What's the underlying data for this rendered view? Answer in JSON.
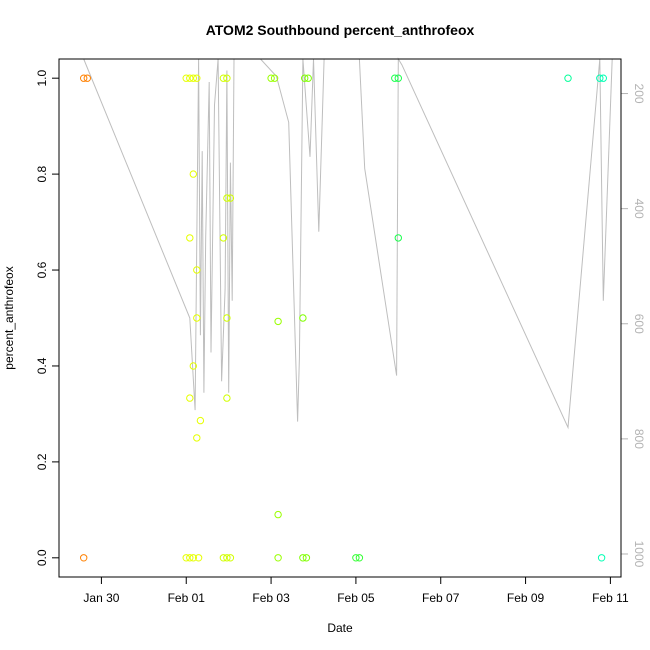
{
  "chart_data": {
    "type": "scatter",
    "title": "ATOM2 Southbound percent_anthrofeox",
    "xlabel": "Date",
    "ylabel": "percent_anthrofeox",
    "x_unit": "date",
    "xlim": [
      "2017-01-29T00:00",
      "2017-02-11T06:00"
    ],
    "ylim": [
      -0.04,
      1.04
    ],
    "x_ticks": [
      {
        "date": "2017-01-30T00:00",
        "label": "Jan 30"
      },
      {
        "date": "2017-02-01T00:00",
        "label": "Feb 01"
      },
      {
        "date": "2017-02-03T00:00",
        "label": "Feb 03"
      },
      {
        "date": "2017-02-05T00:00",
        "label": "Feb 05"
      },
      {
        "date": "2017-02-07T00:00",
        "label": "Feb 07"
      },
      {
        "date": "2017-02-09T00:00",
        "label": "Feb 09"
      },
      {
        "date": "2017-02-11T00:00",
        "label": "Feb 11"
      }
    ],
    "y_ticks": [
      0.0,
      0.2,
      0.4,
      0.6,
      0.8,
      1.0
    ],
    "y_tick_labels": [
      "0.0",
      "0.2",
      "0.4",
      "0.6",
      "0.8",
      "1.0"
    ],
    "secondary_axis": {
      "side": "right",
      "reversed": true,
      "lim": [
        140,
        1040
      ],
      "ticks": [
        200,
        400,
        600,
        800,
        1000
      ],
      "tick_labels": [
        "200",
        "400",
        "600",
        "800",
        "1000"
      ],
      "color": "#b3b3b3"
    },
    "line_series": {
      "axis": "secondary",
      "color": "#bebebe",
      "points": [
        [
          "2017-01-29T14:00",
          140
        ],
        [
          "2017-02-01T02:00",
          590
        ],
        [
          "2017-02-01T05:00",
          750
        ],
        [
          "2017-02-01T07:00",
          140
        ],
        [
          "2017-02-01T08:00",
          620
        ],
        [
          "2017-02-01T09:00",
          300
        ],
        [
          "2017-02-01T10:00",
          720
        ],
        [
          "2017-02-01T11:00",
          450
        ],
        [
          "2017-02-01T13:00",
          180
        ],
        [
          "2017-02-01T14:00",
          650
        ],
        [
          "2017-02-01T16:00",
          220
        ],
        [
          "2017-02-01T18:00",
          140
        ],
        [
          "2017-02-01T20:00",
          700
        ],
        [
          "2017-02-01T22:00",
          540
        ],
        [
          "2017-02-01T23:00",
          160
        ],
        [
          "2017-02-02T00:00",
          720
        ],
        [
          "2017-02-02T01:00",
          320
        ],
        [
          "2017-02-02T02:00",
          560
        ],
        [
          "2017-02-02T03:00",
          140
        ],
        [
          "2017-02-02T18:00",
          140
        ],
        [
          "2017-02-03T03:00",
          170
        ],
        [
          "2017-02-03T10:00",
          250
        ],
        [
          "2017-02-03T15:00",
          770
        ],
        [
          "2017-02-03T16:00",
          660
        ],
        [
          "2017-02-03T18:00",
          140
        ],
        [
          "2017-02-03T22:00",
          310
        ],
        [
          "2017-02-04T00:00",
          140
        ],
        [
          "2017-02-04T03:00",
          440
        ],
        [
          "2017-02-04T06:00",
          140
        ],
        [
          "2017-02-05T02:00",
          140
        ],
        [
          "2017-02-05T05:00",
          330
        ],
        [
          "2017-02-05T23:00",
          690
        ],
        [
          "2017-02-06T00:00",
          140
        ],
        [
          "2017-02-06T02:00",
          150
        ],
        [
          "2017-02-10T00:00",
          780
        ],
        [
          "2017-02-10T18:00",
          140
        ],
        [
          "2017-02-10T20:00",
          560
        ],
        [
          "2017-02-11T01:00",
          140
        ]
      ]
    },
    "points": [
      {
        "x": "2017-01-29T14:00",
        "y": 1.0,
        "color": "#ff8000"
      },
      {
        "x": "2017-01-29T16:00",
        "y": 1.0,
        "color": "#ff8000"
      },
      {
        "x": "2017-01-29T14:00",
        "y": 0.0,
        "color": "#ff8000"
      },
      {
        "x": "2017-02-01T00:00",
        "y": 1.0,
        "color": "#e6ff00"
      },
      {
        "x": "2017-02-01T02:00",
        "y": 1.0,
        "color": "#e6ff00"
      },
      {
        "x": "2017-02-01T04:00",
        "y": 1.0,
        "color": "#e6ff00"
      },
      {
        "x": "2017-02-01T06:00",
        "y": 1.0,
        "color": "#e6ff00"
      },
      {
        "x": "2017-02-01T02:00",
        "y": 0.667,
        "color": "#e6ff00"
      },
      {
        "x": "2017-02-01T04:00",
        "y": 0.8,
        "color": "#e6ff00"
      },
      {
        "x": "2017-02-01T06:00",
        "y": 0.6,
        "color": "#e6ff00"
      },
      {
        "x": "2017-02-01T06:00",
        "y": 0.5,
        "color": "#e6ff00"
      },
      {
        "x": "2017-02-01T04:00",
        "y": 0.4,
        "color": "#e6ff00"
      },
      {
        "x": "2017-02-01T02:00",
        "y": 0.333,
        "color": "#e6ff00"
      },
      {
        "x": "2017-02-01T08:00",
        "y": 0.286,
        "color": "#e6ff00"
      },
      {
        "x": "2017-02-01T06:00",
        "y": 0.25,
        "color": "#e6ff00"
      },
      {
        "x": "2017-02-01T00:00",
        "y": 0.0,
        "color": "#e6ff00"
      },
      {
        "x": "2017-02-01T02:00",
        "y": 0.0,
        "color": "#e6ff00"
      },
      {
        "x": "2017-02-01T04:00",
        "y": 0.0,
        "color": "#e6ff00"
      },
      {
        "x": "2017-02-01T07:00",
        "y": 0.0,
        "color": "#e6ff00"
      },
      {
        "x": "2017-02-01T21:00",
        "y": 1.0,
        "color": "#d2ff00"
      },
      {
        "x": "2017-02-01T23:00",
        "y": 1.0,
        "color": "#d2ff00"
      },
      {
        "x": "2017-02-01T23:00",
        "y": 0.75,
        "color": "#d2ff00"
      },
      {
        "x": "2017-02-02T01:00",
        "y": 0.75,
        "color": "#d2ff00"
      },
      {
        "x": "2017-02-01T21:00",
        "y": 0.667,
        "color": "#d2ff00"
      },
      {
        "x": "2017-02-01T23:00",
        "y": 0.5,
        "color": "#d2ff00"
      },
      {
        "x": "2017-02-01T23:00",
        "y": 0.333,
        "color": "#d2ff00"
      },
      {
        "x": "2017-02-01T21:00",
        "y": 0.0,
        "color": "#d2ff00"
      },
      {
        "x": "2017-02-01T23:00",
        "y": 0.0,
        "color": "#d2ff00"
      },
      {
        "x": "2017-02-02T01:00",
        "y": 0.0,
        "color": "#d2ff00"
      },
      {
        "x": "2017-02-03T00:00",
        "y": 1.0,
        "color": "#99ff00"
      },
      {
        "x": "2017-02-03T02:00",
        "y": 1.0,
        "color": "#99ff00"
      },
      {
        "x": "2017-02-03T04:00",
        "y": 0.493,
        "color": "#99ff00"
      },
      {
        "x": "2017-02-03T04:00",
        "y": 0.09,
        "color": "#99ff00"
      },
      {
        "x": "2017-02-03T04:00",
        "y": 0.0,
        "color": "#99ff00"
      },
      {
        "x": "2017-02-03T19:00",
        "y": 1.0,
        "color": "#80ff00"
      },
      {
        "x": "2017-02-03T21:00",
        "y": 1.0,
        "color": "#80ff00"
      },
      {
        "x": "2017-02-03T18:00",
        "y": 0.5,
        "color": "#80ff00"
      },
      {
        "x": "2017-02-03T18:00",
        "y": 0.0,
        "color": "#80ff00"
      },
      {
        "x": "2017-02-03T20:00",
        "y": 0.0,
        "color": "#80ff00"
      },
      {
        "x": "2017-02-05T00:00",
        "y": 0.0,
        "color": "#33ff33"
      },
      {
        "x": "2017-02-05T02:00",
        "y": 0.0,
        "color": "#33ff33"
      },
      {
        "x": "2017-02-05T22:00",
        "y": 1.0,
        "color": "#1aff4d"
      },
      {
        "x": "2017-02-06T00:00",
        "y": 1.0,
        "color": "#1aff4d"
      },
      {
        "x": "2017-02-06T00:00",
        "y": 0.667,
        "color": "#1aff4d"
      },
      {
        "x": "2017-02-10T00:00",
        "y": 1.0,
        "color": "#00ff99"
      },
      {
        "x": "2017-02-10T18:00",
        "y": 1.0,
        "color": "#00ffb3"
      },
      {
        "x": "2017-02-10T20:00",
        "y": 1.0,
        "color": "#00ffb3"
      },
      {
        "x": "2017-02-10T19:00",
        "y": 0.0,
        "color": "#00ffb3"
      }
    ],
    "grid": false,
    "legend": "none"
  }
}
